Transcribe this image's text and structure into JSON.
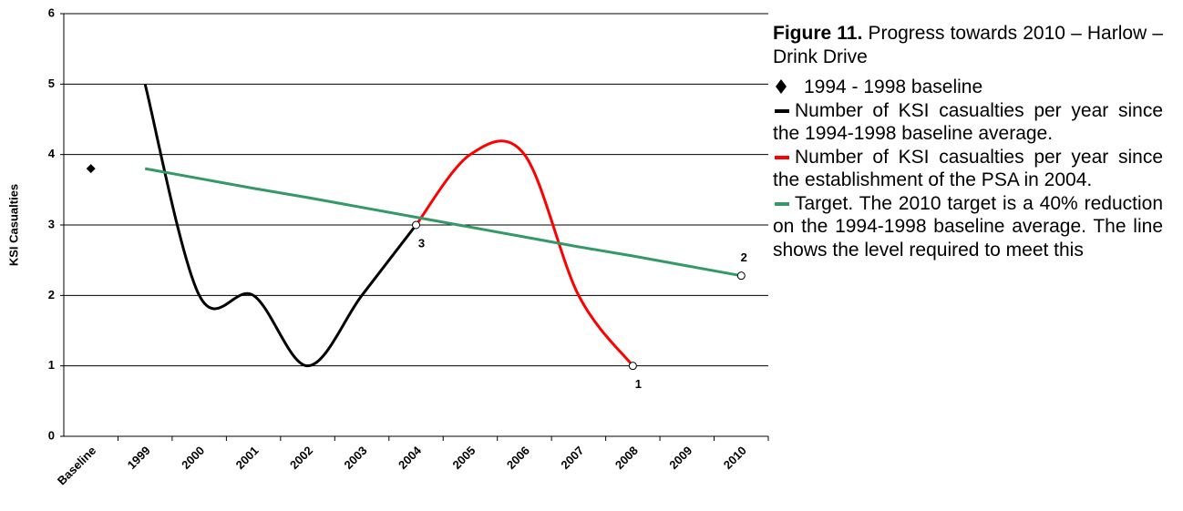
{
  "chart_data": {
    "type": "line",
    "figure_label": "Figure 11.",
    "title": "Progress towards 2010 – Harlow – Drink Drive",
    "y_label": "KSI Casualties",
    "categories": [
      "Baseline",
      "1999",
      "2000",
      "2001",
      "2002",
      "2003",
      "2004",
      "2005",
      "2006",
      "2007",
      "2008",
      "2009",
      "2010"
    ],
    "ylim": [
      0,
      6
    ],
    "yticks": [
      0,
      1,
      2,
      3,
      4,
      5,
      6
    ],
    "grid": true,
    "series": [
      {
        "name": "1994 - 1998 baseline",
        "color": "#000000",
        "marker": "diamond",
        "values": [
          3.8,
          null,
          null,
          null,
          null,
          null,
          null,
          null,
          null,
          null,
          null,
          null,
          null
        ]
      },
      {
        "name": "Number of KSI casualties per year since the 1994-1998 baseline average.",
        "color": "#000000",
        "smooth": true,
        "values": [
          null,
          5,
          2,
          2,
          1,
          2,
          3,
          null,
          null,
          null,
          null,
          null,
          null
        ]
      },
      {
        "name": "Number of KSI casualties per year since the establishment of the PSA in 2004.",
        "color": "#ff0000",
        "smooth": true,
        "values": [
          null,
          null,
          null,
          null,
          null,
          null,
          3,
          4,
          4,
          2,
          1,
          null,
          null
        ],
        "point_labels": [
          null,
          null,
          null,
          null,
          null,
          null,
          "3",
          null,
          null,
          null,
          "1",
          null,
          null
        ]
      },
      {
        "name": "Target. The 2010 target is a 40% reduction on the 1994-1998 baseline average. The line shows the level required to meet this",
        "color": "#339966",
        "smooth": false,
        "values": [
          null,
          3.8,
          3.66,
          3.52,
          3.39,
          3.25,
          3.11,
          2.97,
          2.83,
          2.69,
          2.56,
          2.42,
          2.28
        ],
        "point_labels": [
          null,
          null,
          null,
          null,
          null,
          null,
          null,
          null,
          null,
          null,
          null,
          null,
          "2"
        ]
      }
    ]
  }
}
